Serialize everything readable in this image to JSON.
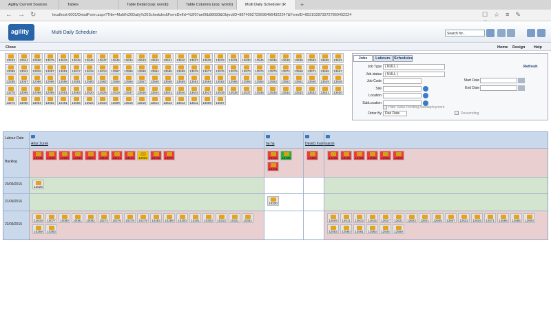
{
  "browser": {
    "tabs": [
      "Agility Current Sources",
      "Tables",
      "Table Detail (sop: wo/ob)",
      "Table Columns (sop: wo/ob)",
      "Multi Daily Scheduler (R"
    ],
    "url": "localhost:6001/DetailForm.aspx?Title=Multi%20Daily%20Scheduler&FormDefId=%2f07ae06b88683&ObjectID=88740027296984964322247&FormID=8521028733727860432224"
  },
  "header": {
    "logo": "agility",
    "title": "Multi Daily Scheduler",
    "search": "Search for..."
  },
  "toolbar": {
    "close": "Close",
    "home": "Home",
    "design": "Design",
    "help": "Help"
  },
  "jobs": [
    [
      "13243",
      "12914",
      "12580",
      "13579",
      "13634",
      "13649",
      "13646",
      "13647",
      "13645",
      "13644",
      "13643",
      "13642",
      "13641",
      "13640",
      "13637",
      "13635",
      "13633",
      "13631",
      "13630",
      "13545",
      "13636",
      "13648",
      "13639",
      "13593",
      "13638",
      "13632"
    ],
    [
      "13089",
      "13042",
      "12826",
      "13087",
      "13591",
      "13617",
      "13616",
      "13613",
      "13597",
      "13596",
      "13599",
      "13594",
      "13595",
      "13589",
      "13578",
      "13577",
      "13576",
      "13575",
      "13573",
      "13574",
      "13570",
      "13572",
      "13568",
      "13571",
      "13569",
      "13567"
    ],
    [
      "13289",
      "13057",
      "12086",
      "12096",
      "13598",
      "13581",
      "13580",
      "13582",
      "13566",
      "13565",
      "13557",
      "13560",
      "13558",
      "13559",
      "13561",
      "13564",
      "13562",
      "13556",
      "13555",
      "13554",
      "13553",
      "13552",
      "13551",
      "13550",
      "13549",
      "13548"
    ],
    [
      "13278",
      "13065",
      "12098",
      "12089",
      "12051",
      "13563",
      "13520",
      "13526",
      "13519",
      "13547",
      "13546",
      "13544",
      "13541",
      "13540",
      "13543",
      "13527",
      "13539",
      "13538",
      "13537",
      "13536",
      "13535",
      "13534",
      "13533",
      "13532",
      "13531",
      "13530"
    ],
    [
      "13272",
      "13066",
      "13064",
      "13062",
      "12481",
      "13506",
      "13524",
      "13510",
      "13509",
      "13516",
      "13515",
      "13514",
      "13513",
      "13512",
      "13511",
      "13508",
      "13507"
    ]
  ],
  "filter": {
    "tabs": [
      "Jobs",
      "Labours",
      "Schedules"
    ],
    "refresh": "Refresh",
    "left": [
      {
        "label": "Job Type",
        "value": "( NULL )"
      },
      {
        "label": "Job status",
        "value": "( NULL )"
      },
      {
        "label": "Job Code",
        "value": ""
      },
      {
        "label": "Site",
        "value": ""
      },
      {
        "label": "Location",
        "value": ""
      },
      {
        "label": "SubLocation",
        "value": ""
      }
    ],
    "right": [
      {
        "label": "Start Date"
      },
      {
        "label": "End Date"
      }
    ],
    "hide": "Hide Tasks Pending Autodeployment",
    "order_label": "Order By",
    "order_value": "Due Date",
    "descending": "Descending"
  },
  "scheduler": {
    "corner": "Labour Date",
    "columns": [
      {
        "name": "Artur Zurek",
        "note": "-"
      },
      {
        "name": "ha ha"
      },
      {
        "name": "David1 kvans"
      },
      {
        "name": "sarah"
      }
    ],
    "rows": [
      {
        "label": "Backlog",
        "cells": [
          [
            {
              "id": "13145",
              "color": "#ee3b3b"
            },
            {
              "id": "13027",
              "color": "#ee3b3b"
            },
            {
              "id": "13134",
              "color": "#ee3b3b"
            },
            {
              "id": "12430",
              "color": "#ee3b3b"
            },
            {
              "id": "13117",
              "color": "#ee3b3b"
            },
            {
              "id": "13119",
              "color": "#ee3b3b"
            },
            {
              "id": "13131",
              "color": "#ee3b3b"
            },
            {
              "id": "13113",
              "color": "#ee3b3b"
            },
            {
              "id": "12933",
              "color": "#f2c200"
            },
            {
              "id": "13132",
              "color": "#ee3b3b"
            },
            {
              "id": "13070",
              "color": "#ee3b3b"
            }
          ],
          [
            {
              "id": "13410",
              "color": "#ee3b3b"
            },
            {
              "id": "13135",
              "color": "#2fae3a"
            },
            {
              "id": "13411",
              "color": "#ee3b3b"
            }
          ],
          [
            {
              "id": "13124",
              "color": "#ee3b3b"
            }
          ],
          [
            {
              "id": "13126",
              "color": "#ee3b3b"
            },
            {
              "id": "13129",
              "color": "#ee3b3b"
            },
            {
              "id": "13123",
              "color": "#ee3b3b"
            },
            {
              "id": "13068",
              "color": "#ee3b3b"
            },
            {
              "id": "13054",
              "color": "#ee3b3b"
            },
            {
              "id": "13118",
              "color": "#ee3b3b"
            }
          ]
        ]
      },
      {
        "label": "20/09/2016",
        "cells": [
          [
            {
              "id": "13028",
              "color": "#e4e4e4"
            }
          ],
          [],
          [],
          []
        ]
      },
      {
        "label": "21/09/2016",
        "cells": [
          [],
          [
            {
              "id": "10320",
              "color": "#e4e4e4"
            }
          ],
          [],
          []
        ]
      },
      {
        "label": "22/09/2016",
        "cells": [
          [
            {
              "id": "12619",
              "color": "#e4e4e4"
            },
            {
              "id": "10077",
              "color": "#e4e4e4"
            },
            {
              "id": "10080",
              "color": "#e4e4e4"
            },
            {
              "id": "10081",
              "color": "#e4e4e4"
            },
            {
              "id": "10082",
              "color": "#e4e4e4"
            },
            {
              "id": "10274",
              "color": "#e4e4e4"
            },
            {
              "id": "10276",
              "color": "#e4e4e4"
            },
            {
              "id": "10278",
              "color": "#e4e4e4"
            },
            {
              "id": "10279",
              "color": "#e4e4e4"
            },
            {
              "id": "10283",
              "color": "#e4e4e4"
            },
            {
              "id": "10289",
              "color": "#e4e4e4"
            },
            {
              "id": "10300",
              "color": "#e4e4e4"
            },
            {
              "id": "10301",
              "color": "#e4e4e4"
            },
            {
              "id": "10303",
              "color": "#e4e4e4"
            },
            {
              "id": "10313",
              "color": "#e4e4e4"
            },
            {
              "id": "10321",
              "color": "#e4e4e4"
            },
            {
              "id": "10352",
              "color": "#e4e4e4"
            },
            {
              "id": "10259",
              "color": "#e4e4e4"
            },
            {
              "id": "10363",
              "color": "#e4e4e4"
            }
          ],
          [],
          [],
          [
            {
              "id": "12609",
              "color": "#e4e4e4"
            },
            {
              "id": "12611",
              "color": "#e4e4e4"
            },
            {
              "id": "12613",
              "color": "#e4e4e4"
            },
            {
              "id": "12615",
              "color": "#e4e4e4"
            },
            {
              "id": "12617",
              "color": "#e4e4e4"
            },
            {
              "id": "12621",
              "color": "#e4e4e4"
            },
            {
              "id": "12603",
              "color": "#e4e4e4"
            },
            {
              "id": "12601",
              "color": "#e4e4e4"
            },
            {
              "id": "12605",
              "color": "#e4e4e4"
            },
            {
              "id": "12607",
              "color": "#e4e4e4"
            },
            {
              "id": "12623",
              "color": "#e4e4e4"
            },
            {
              "id": "12625",
              "color": "#e4e4e4"
            },
            {
              "id": "12571",
              "color": "#e4e4e4"
            },
            {
              "id": "12566",
              "color": "#e4e4e4"
            },
            {
              "id": "12585",
              "color": "#e4e4e4"
            },
            {
              "id": "12600",
              "color": "#e4e4e4"
            },
            {
              "id": "12562",
              "color": "#e4e4e4"
            },
            {
              "id": "12560",
              "color": "#e4e4e4"
            },
            {
              "id": "12561",
              "color": "#e4e4e4"
            },
            {
              "id": "12563",
              "color": "#e4e4e4"
            },
            {
              "id": "12544",
              "color": "#e4e4e4"
            },
            {
              "id": "12559",
              "color": "#e4e4e4"
            }
          ]
        ]
      }
    ]
  }
}
